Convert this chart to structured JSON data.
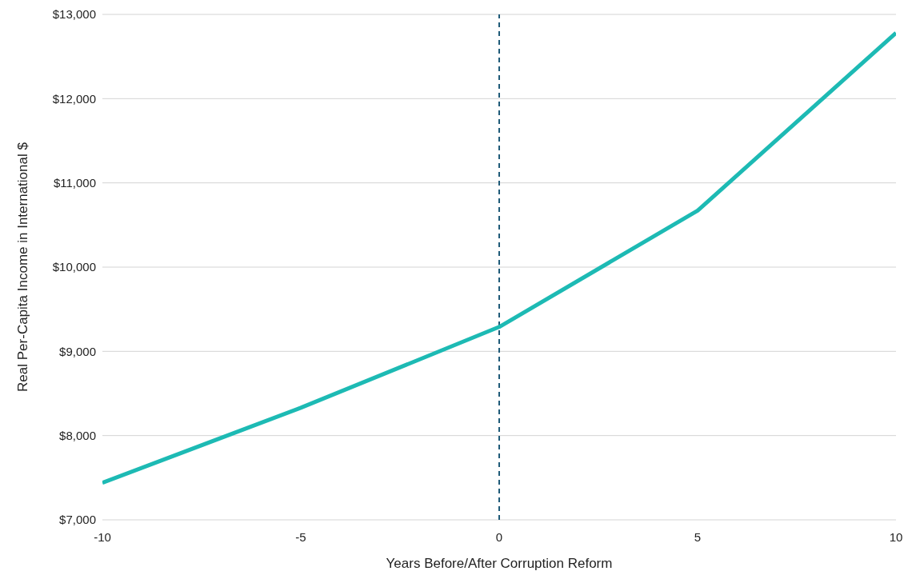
{
  "chart_data": {
    "type": "line",
    "xlabel": "Years Before/After Corruption Reform",
    "ylabel": "Real Per-Capita Income in International $",
    "x": [
      -10,
      -5,
      0,
      5,
      10
    ],
    "series": [
      {
        "color": "#1dbab4",
        "values": [
          7440,
          8330,
          9290,
          10670,
          12780
        ]
      }
    ],
    "xlim": [
      -10,
      10
    ],
    "xticks": [
      -10,
      -5,
      0,
      5,
      10
    ],
    "ylim": [
      7000,
      13000
    ],
    "yticks": [
      {
        "value": 7000,
        "label": "$7,000"
      },
      {
        "value": 8000,
        "label": "$8,000"
      },
      {
        "value": 9000,
        "label": "$9,000"
      },
      {
        "value": 10000,
        "label": "$10,000"
      },
      {
        "value": 11000,
        "label": "$11,000"
      },
      {
        "value": 12000,
        "label": "$12,000"
      },
      {
        "value": 13000,
        "label": "$13,000"
      }
    ],
    "grid": "y",
    "legend": false,
    "marker": "none",
    "line_style": "solid",
    "ref_lines": [
      {
        "axis": "x",
        "value": 0,
        "color": "#1f5a78",
        "line_style": "dashed"
      }
    ]
  }
}
